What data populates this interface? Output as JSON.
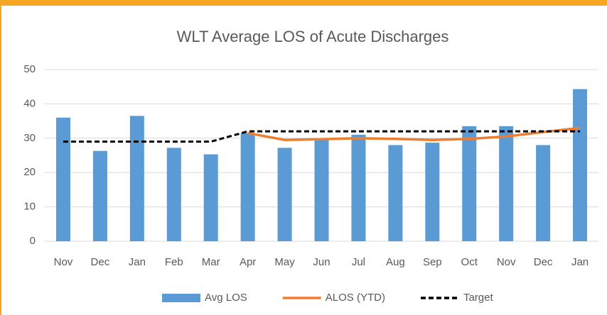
{
  "chart_data": {
    "type": "bar",
    "title": "WLT Average LOS of Acute Discharges",
    "categories": [
      "Nov",
      "Dec",
      "Jan",
      "Feb",
      "Mar",
      "Apr",
      "May",
      "Jun",
      "Jul",
      "Aug",
      "Sep",
      "Oct",
      "Nov",
      "Dec",
      "Jan"
    ],
    "series": [
      {
        "name": "Avg LOS",
        "type": "bar",
        "color": "#5b9bd5",
        "values": [
          36,
          26.3,
          36.5,
          27.2,
          25.3,
          31.5,
          27.2,
          29.5,
          31,
          28,
          28.7,
          33.5,
          33.5,
          28,
          44.3
        ]
      },
      {
        "name": "ALOS (YTD)",
        "type": "line",
        "color": "#ed7d31",
        "values": [
          null,
          null,
          null,
          null,
          null,
          31.5,
          29.5,
          29.7,
          30,
          29.8,
          29.5,
          29.8,
          30.5,
          31.8,
          33
        ]
      },
      {
        "name": "Target",
        "type": "line",
        "color": "#000000",
        "dashed": true,
        "values": [
          29,
          29,
          29,
          29,
          29,
          32,
          32,
          32,
          32,
          32,
          32,
          32,
          32,
          32,
          32
        ]
      }
    ],
    "ylim": [
      0,
      50
    ],
    "yticks": [
      0,
      10,
      20,
      30,
      40,
      50
    ],
    "grid": true,
    "legend": "bottom"
  }
}
